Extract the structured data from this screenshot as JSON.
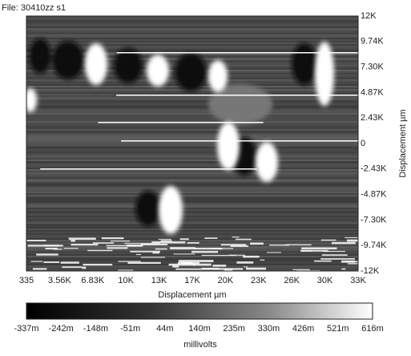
{
  "file_label": "File: 30410zz s1",
  "x_axis": {
    "label": "Displacement µm",
    "ticks": [
      "335",
      "3.56K",
      "6.83K",
      "10K",
      "13K",
      "17K",
      "20K",
      "23K",
      "26K",
      "30K",
      "33K"
    ]
  },
  "y_axis": {
    "label": "Displacement µm",
    "ticks": [
      "12K",
      "9.74K",
      "7.30K",
      "4.87K",
      "2.43K",
      "0",
      "-2.43K",
      "-4.87K",
      "-7.30K",
      "-9.74K",
      "-12K"
    ]
  },
  "colorbar": {
    "label": "millivolts",
    "ticks": [
      "-337m",
      "-242m",
      "-148m",
      "-51m",
      "44m",
      "140m",
      "235m",
      "330m",
      "426m",
      "521m",
      "616m"
    ]
  }
}
